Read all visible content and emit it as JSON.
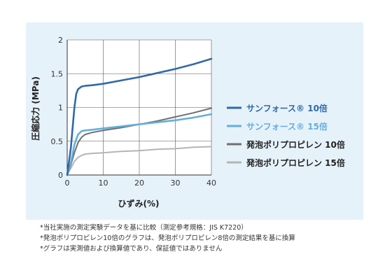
{
  "chart_data": {
    "type": "line",
    "xlabel": "ひずみ(%)",
    "ylabel": "圧縮応力 (MPa)",
    "xlim": [
      0,
      40
    ],
    "ylim": [
      0,
      2
    ],
    "x_ticks": [
      0,
      10,
      20,
      30,
      40
    ],
    "y_ticks": [
      0,
      0.5,
      1,
      1.5,
      2
    ],
    "x_tick_labels": [
      "0",
      "10",
      "20",
      "30",
      "40"
    ],
    "y_tick_labels": [
      "0",
      "0.5",
      "1",
      "1.5",
      "2"
    ],
    "grid": true,
    "legend_position": "right",
    "series": [
      {
        "name": "サンフォース® 10倍",
        "color": "#2f6aa8",
        "x": [
          0,
          1,
          2,
          2.5,
          3,
          4,
          5,
          7,
          10,
          15,
          20,
          25,
          30,
          35,
          40
        ],
        "y": [
          0,
          0.4,
          1.0,
          1.2,
          1.27,
          1.31,
          1.32,
          1.33,
          1.35,
          1.4,
          1.45,
          1.51,
          1.57,
          1.64,
          1.72
        ]
      },
      {
        "name": "サンフォース® 15倍",
        "color": "#64aede",
        "x": [
          0,
          1,
          2,
          3,
          4,
          5,
          7,
          10,
          15,
          20,
          25,
          30,
          35,
          40
        ],
        "y": [
          0,
          0.18,
          0.45,
          0.6,
          0.65,
          0.66,
          0.67,
          0.69,
          0.72,
          0.75,
          0.78,
          0.81,
          0.85,
          0.9
        ]
      },
      {
        "name": "発泡ポリプロピレン 10倍",
        "color": "#6f6f6f",
        "x": [
          0,
          1,
          2,
          3,
          4,
          5,
          7,
          10,
          15,
          20,
          25,
          30,
          35,
          40
        ],
        "y": [
          0,
          0.15,
          0.33,
          0.48,
          0.56,
          0.6,
          0.63,
          0.66,
          0.7,
          0.75,
          0.8,
          0.86,
          0.92,
          0.99
        ]
      },
      {
        "name": "発泡ポリプロピレン 15倍",
        "color": "#b5b5b5",
        "x": [
          0,
          1,
          2,
          3,
          4,
          5,
          7,
          10,
          15,
          20,
          25,
          30,
          35,
          40
        ],
        "y": [
          0,
          0.1,
          0.2,
          0.26,
          0.29,
          0.31,
          0.32,
          0.33,
          0.35,
          0.36,
          0.38,
          0.39,
          0.41,
          0.42
        ]
      }
    ]
  },
  "notes": [
    "*当社実施の測定実験データを基に比較（測定参考規格：JIS K7220）",
    "*発泡ポリプロピレン10倍のグラフは、発泡ポリプロピレン8倍の測定結果を基に換算",
    "*グラフは実測値および換算値であり、保証値ではありません"
  ]
}
